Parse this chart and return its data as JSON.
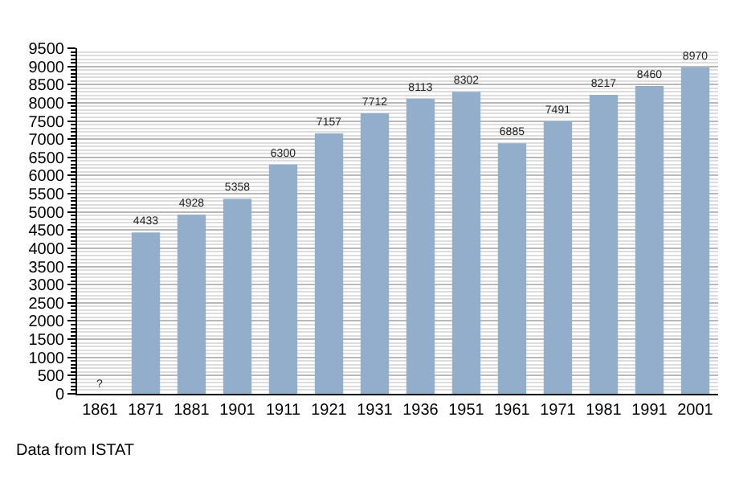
{
  "chart_data": {
    "type": "bar",
    "categories": [
      "1861",
      "1871",
      "1881",
      "1901",
      "1911",
      "1921",
      "1931",
      "1936",
      "1951",
      "1961",
      "1971",
      "1981",
      "1991",
      "2001"
    ],
    "values": [
      null,
      4433,
      4928,
      5358,
      6300,
      7157,
      7712,
      8113,
      8302,
      6885,
      7491,
      8217,
      8460,
      8970
    ],
    "value_labels": [
      "?",
      "4433",
      "4928",
      "5358",
      "6300",
      "7157",
      "7712",
      "8113",
      "8302",
      "6885",
      "7491",
      "8217",
      "8460",
      "8970"
    ],
    "color": "#93aecb",
    "ylim": [
      0,
      9500
    ],
    "yticks": [
      0,
      500,
      1000,
      1500,
      2000,
      2500,
      3000,
      3500,
      4000,
      4500,
      5000,
      5500,
      6000,
      6500,
      7000,
      7500,
      8000,
      8500,
      9000,
      9500
    ],
    "grid": "y",
    "legend": false,
    "annotations": [
      "Data from ISTAT"
    ]
  }
}
